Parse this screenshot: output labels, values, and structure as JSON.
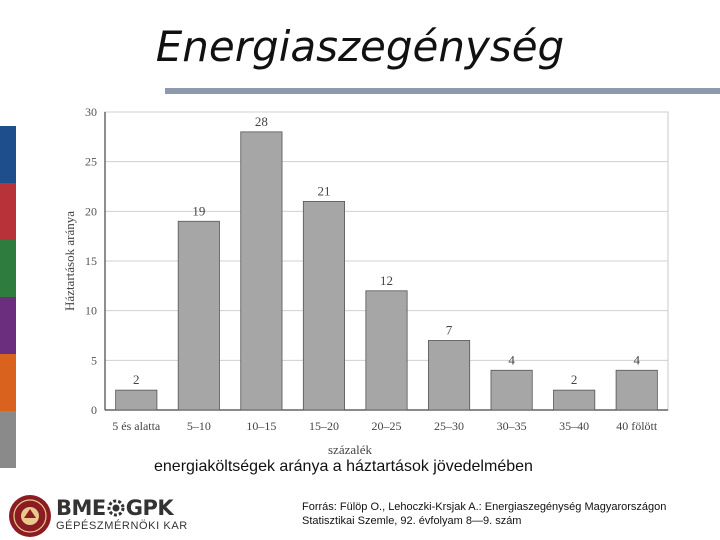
{
  "slide": {
    "title": "Energiaszegénység",
    "caption": "energiaköltségek aránya a háztartások jövedelmében",
    "source_line1": "Forrás: Fülöp O., Lehoczki-Krsjak A.: Energiaszegénység Magyarországon",
    "source_line2": "Statisztikai Szemle, 92. évfolyam 8—9. szám",
    "stripe_colors": [
      "#1f4e8c",
      "#b8323a",
      "#2f7d3e",
      "#6b2d7e",
      "#d9631e",
      "#8a8a8a"
    ]
  },
  "brand": {
    "name_left": "BME",
    "name_right": "GPK",
    "subtitle": "GÉPÉSZMÉRNÖKI KAR",
    "logo_color": "#8b1c24"
  },
  "chart_data": {
    "type": "bar",
    "categories": [
      "5 és alatta",
      "5–10",
      "10–15",
      "15–20",
      "20–25",
      "25–30",
      "30–35",
      "35–40",
      "40 fölött"
    ],
    "values": [
      2,
      19,
      28,
      21,
      12,
      7,
      4,
      2,
      4
    ],
    "title": "",
    "xlabel": "százalék",
    "ylabel": "Háztartások aránya",
    "ylim": [
      0,
      30
    ],
    "yticks": [
      0,
      5,
      10,
      15,
      20,
      25,
      30
    ],
    "grid": true,
    "bar_color": "#a6a6a6",
    "bar_edge_color": "#555555"
  }
}
